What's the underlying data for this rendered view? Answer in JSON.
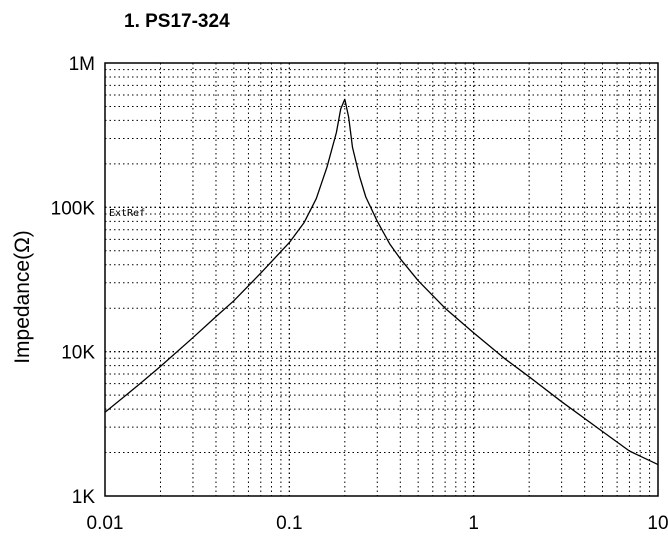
{
  "chart_data": {
    "type": "line",
    "title": "1. PS17-324",
    "xlabel": "",
    "ylabel": "Impedance(Ω)",
    "xscale": "log",
    "yscale": "log",
    "xlim": [
      0.01,
      10
    ],
    "ylim": [
      1000,
      1000000
    ],
    "grid": true,
    "x_ticks": [
      {
        "value": 0.01,
        "label": "0.01"
      },
      {
        "value": 0.1,
        "label": "0.1"
      },
      {
        "value": 1,
        "label": "1"
      },
      {
        "value": 10,
        "label": "10"
      }
    ],
    "y_ticks": [
      {
        "value": 1000,
        "label": "1K"
      },
      {
        "value": 10000,
        "label": "10K"
      },
      {
        "value": 100000,
        "label": "100K"
      },
      {
        "value": 1000000,
        "label": "1M"
      }
    ],
    "annotations": [
      {
        "text": "ExtRef",
        "x": 0.01,
        "y": 87000
      }
    ],
    "series": [
      {
        "x": [
          0.01,
          0.015,
          0.02,
          0.03,
          0.04,
          0.05,
          0.07,
          0.1,
          0.12,
          0.14,
          0.16,
          0.18,
          0.19,
          0.2,
          0.21,
          0.22,
          0.24,
          0.26,
          0.3,
          0.35,
          0.4,
          0.5,
          0.7,
          1,
          1.5,
          2,
          3,
          5,
          7,
          10
        ],
        "y": [
          3800,
          5800,
          7900,
          12500,
          17500,
          22500,
          35000,
          57000,
          78000,
          115000,
          190000,
          330000,
          480000,
          560000,
          420000,
          260000,
          165000,
          118000,
          80000,
          56000,
          44000,
          31000,
          20000,
          13500,
          8800,
          6700,
          4500,
          2800,
          2050,
          1650
        ]
      }
    ]
  }
}
